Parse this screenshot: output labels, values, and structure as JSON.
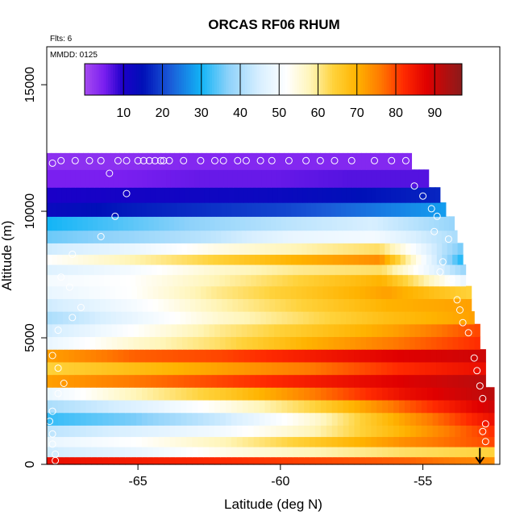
{
  "chart_data": {
    "type": "heatmap",
    "title": "ORCAS RF06 RHUM",
    "notes": {
      "flts": "Flts: 6",
      "mmdd": "MMDD: 0125"
    },
    "xlabel": "Latitude (deg N)",
    "ylabel": "Altitude (m)",
    "xlim": [
      -68.2,
      -52.3
    ],
    "ylim": [
      0,
      16500
    ],
    "x_ticks": [
      -65,
      -60,
      -55
    ],
    "x_tick_labels": [
      "-65",
      "-60",
      "-55"
    ],
    "y_ticks": [
      0,
      5000,
      10000,
      15000
    ],
    "y_tick_labels": [
      "0",
      "5000",
      "10000",
      "15000"
    ],
    "colorbar": {
      "range": [
        0,
        97
      ],
      "ticks": [
        10,
        20,
        30,
        40,
        50,
        60,
        70,
        80,
        90
      ],
      "tick_labels": [
        "10",
        "20",
        "30",
        "40",
        "50",
        "60",
        "70",
        "80",
        "90"
      ],
      "stops": [
        {
          "v": 0,
          "color": "#a64bf0"
        },
        {
          "v": 5,
          "color": "#7a1ff0"
        },
        {
          "v": 10,
          "color": "#1a00c8"
        },
        {
          "v": 15,
          "color": "#0010b8"
        },
        {
          "v": 22,
          "color": "#1a5bd8"
        },
        {
          "v": 30,
          "color": "#12b4f6"
        },
        {
          "v": 37,
          "color": "#8ed2fa"
        },
        {
          "v": 45,
          "color": "#d8efff"
        },
        {
          "v": 52,
          "color": "#ffffff"
        },
        {
          "v": 58,
          "color": "#fff5b8"
        },
        {
          "v": 64,
          "color": "#ffd23a"
        },
        {
          "v": 70,
          "color": "#ffb300"
        },
        {
          "v": 76,
          "color": "#ff7a00"
        },
        {
          "v": 82,
          "color": "#ff2a00"
        },
        {
          "v": 88,
          "color": "#e00000"
        },
        {
          "v": 93,
          "color": "#b01010"
        },
        {
          "v": 97,
          "color": "#8b1a1a"
        }
      ]
    },
    "grid": false,
    "levels": [
      {
        "alt": 12000,
        "xmax": -55.4,
        "v": [
          3,
          3,
          4,
          4,
          4,
          4
        ]
      },
      {
        "alt": 11300,
        "xmax": -54.8,
        "v": [
          5,
          5,
          6,
          6,
          7,
          7
        ]
      },
      {
        "alt": 10600,
        "xmax": -54.4,
        "v": [
          10,
          11,
          12,
          13,
          15,
          17
        ]
      },
      {
        "alt": 10100,
        "xmax": -54.2,
        "v": [
          13,
          16,
          18,
          20,
          24,
          28
        ]
      },
      {
        "alt": 9500,
        "xmax": -53.9,
        "v": [
          30,
          34,
          38,
          42,
          45,
          38
        ]
      },
      {
        "alt": 9000,
        "xmax": -53.8,
        "v": [
          35,
          38,
          42,
          48,
          50,
          40
        ]
      },
      {
        "alt": 8500,
        "xmax": -53.6,
        "v": [
          44,
          48,
          54,
          58,
          62,
          35
        ]
      },
      {
        "alt": 8100,
        "xmax": -53.6,
        "v": [
          52,
          58,
          64,
          70,
          74,
          30
        ]
      },
      {
        "alt": 7700,
        "xmax": -53.5,
        "v": [
          46,
          50,
          56,
          60,
          62,
          38
        ]
      },
      {
        "alt": 7300,
        "xmax": -53.5,
        "v": [
          50,
          52,
          58,
          64,
          70,
          48
        ]
      },
      {
        "alt": 6800,
        "xmax": -53.3,
        "v": [
          48,
          52,
          60,
          66,
          72,
          64
        ]
      },
      {
        "alt": 6300,
        "xmax": -53.3,
        "v": [
          44,
          50,
          58,
          64,
          70,
          72
        ]
      },
      {
        "alt": 5800,
        "xmax": -53.2,
        "v": [
          40,
          48,
          56,
          62,
          68,
          72
        ]
      },
      {
        "alt": 5300,
        "xmax": -53.0,
        "v": [
          44,
          52,
          60,
          66,
          72,
          80
        ]
      },
      {
        "alt": 4800,
        "xmax": -53.0,
        "v": [
          48,
          56,
          62,
          70,
          76,
          82
        ]
      },
      {
        "alt": 4300,
        "xmax": -52.8,
        "v": [
          72,
          78,
          80,
          84,
          88,
          90
        ]
      },
      {
        "alt": 3800,
        "xmax": -52.8,
        "v": [
          64,
          68,
          72,
          76,
          82,
          86
        ]
      },
      {
        "alt": 3300,
        "xmax": -52.8,
        "v": [
          72,
          76,
          80,
          84,
          88,
          92
        ]
      },
      {
        "alt": 2800,
        "xmax": -52.5,
        "v": [
          48,
          58,
          66,
          76,
          86,
          92
        ]
      },
      {
        "alt": 2300,
        "xmax": -52.5,
        "v": [
          40,
          46,
          54,
          64,
          78,
          90
        ]
      },
      {
        "alt": 1800,
        "xmax": -52.5,
        "v": [
          32,
          36,
          44,
          56,
          72,
          86
        ]
      },
      {
        "alt": 1300,
        "xmax": -52.5,
        "v": [
          42,
          46,
          50,
          58,
          70,
          82
        ]
      },
      {
        "alt": 900,
        "xmax": -52.5,
        "v": [
          48,
          52,
          58,
          66,
          74,
          80
        ]
      },
      {
        "alt": 500,
        "xmax": -52.5,
        "v": [
          44,
          48,
          54,
          58,
          62,
          64
        ]
      },
      {
        "alt": 100,
        "xmax": -52.5,
        "v": [
          86,
          84,
          82,
          80,
          78,
          74
        ]
      }
    ],
    "flight_track": [
      [
        -68.0,
        11900
      ],
      [
        -67.7,
        12000
      ],
      [
        -67.2,
        12000
      ],
      [
        -66.7,
        12000
      ],
      [
        -66.3,
        12000
      ],
      [
        -65.7,
        12000
      ],
      [
        -65.4,
        12000
      ],
      [
        -65.0,
        12000
      ],
      [
        -64.8,
        12000
      ],
      [
        -64.6,
        12000
      ],
      [
        -64.4,
        12000
      ],
      [
        -64.2,
        12000
      ],
      [
        -64.1,
        12000
      ],
      [
        -63.9,
        12000
      ],
      [
        -63.4,
        12000
      ],
      [
        -62.8,
        12000
      ],
      [
        -62.3,
        12000
      ],
      [
        -62.0,
        12000
      ],
      [
        -61.5,
        12000
      ],
      [
        -61.2,
        12000
      ],
      [
        -60.7,
        12000
      ],
      [
        -60.3,
        12000
      ],
      [
        -59.7,
        12000
      ],
      [
        -59.1,
        12000
      ],
      [
        -58.6,
        12000
      ],
      [
        -58.1,
        12000
      ],
      [
        -57.5,
        12000
      ],
      [
        -56.7,
        12000
      ],
      [
        -56.1,
        12000
      ],
      [
        -55.6,
        12000
      ],
      [
        -55.2,
        11800
      ],
      [
        -55.3,
        11000
      ],
      [
        -55.0,
        10600
      ],
      [
        -54.7,
        10100
      ],
      [
        -54.5,
        9800
      ],
      [
        -54.6,
        9200
      ],
      [
        -54.1,
        8900
      ],
      [
        -54.3,
        8000
      ],
      [
        -54.4,
        7600
      ],
      [
        -54.0,
        7300
      ],
      [
        -53.8,
        6500
      ],
      [
        -53.7,
        6100
      ],
      [
        -53.6,
        5600
      ],
      [
        -53.4,
        5200
      ],
      [
        -53.2,
        4200
      ],
      [
        -53.1,
        3700
      ],
      [
        -53.0,
        3100
      ],
      [
        -52.9,
        2600
      ],
      [
        -52.8,
        1600
      ],
      [
        -52.9,
        1300
      ],
      [
        -52.8,
        900
      ],
      [
        -66.0,
        11500
      ],
      [
        -65.4,
        10700
      ],
      [
        -65.8,
        9800
      ],
      [
        -66.3,
        9000
      ],
      [
        -67.3,
        8300
      ],
      [
        -67.7,
        7400
      ],
      [
        -67.4,
        7000
      ],
      [
        -67.0,
        6200
      ],
      [
        -67.3,
        5800
      ],
      [
        -67.8,
        5300
      ],
      [
        -68.0,
        4300
      ],
      [
        -67.8,
        3800
      ],
      [
        -67.6,
        3200
      ],
      [
        -67.8,
        2800
      ],
      [
        -68.0,
        2100
      ],
      [
        -68.1,
        1700
      ],
      [
        -68.0,
        1200
      ],
      [
        -68.0,
        800
      ],
      [
        -67.9,
        400
      ],
      [
        -67.9,
        150
      ]
    ],
    "arrow": {
      "x": -53.0,
      "from_alt": 650,
      "to_alt": 30
    }
  }
}
